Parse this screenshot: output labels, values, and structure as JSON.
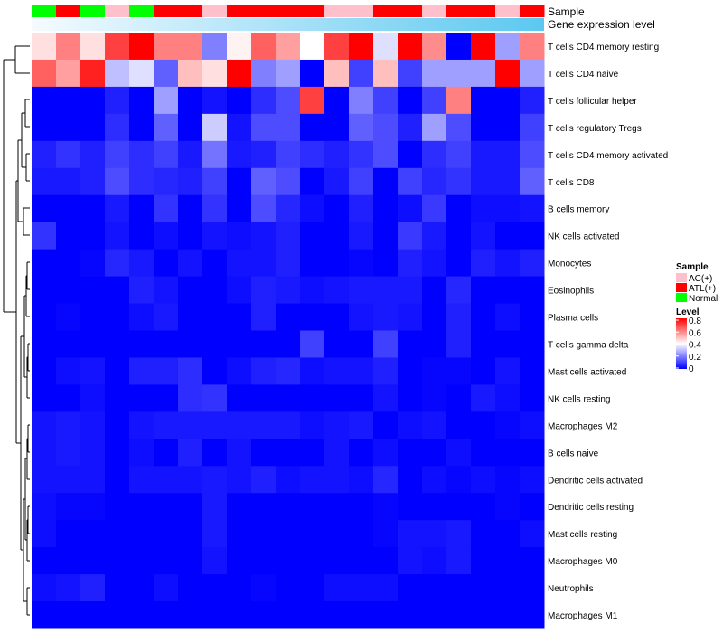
{
  "chart_data": {
    "type": "heatmap",
    "annotation_rows": [
      "Sample",
      "Gene expression level"
    ],
    "sample_groups": [
      "Normal",
      "ATL(+)",
      "Normal",
      "AC(+)",
      "Normal",
      "ATL(+)",
      "ATL(+)",
      "AC(+)",
      "ATL(+)",
      "ATL(+)",
      "ATL(+)",
      "ATL(+)",
      "AC(+)",
      "AC(+)",
      "ATL(+)",
      "ATL(+)",
      "AC(+)",
      "ATL(+)",
      "ATL(+)",
      "AC(+)",
      "ATL(+)"
    ],
    "rows": [
      "T cells CD4 memory resting",
      "T cells CD4 naive",
      "T cells follicular helper",
      "T cells regulatory  Tregs",
      "T cells CD4 memory activated",
      "T cells CD8",
      "B cells memory",
      "NK cells activated",
      "Monocytes",
      "Eosinophils",
      "Plasma cells",
      "T cells gamma delta",
      "Mast cells activated",
      "NK cells resting",
      "Macrophages M2",
      "B cells naive",
      "Dendritic cells activated",
      "Dendritic cells resting",
      "Mast cells resting",
      "Macrophages M0",
      "Neutrophils",
      "Macrophages M1"
    ],
    "values": [
      [
        0.45,
        0.6,
        0.45,
        0.7,
        0.8,
        0.6,
        0.6,
        0.2,
        0.42,
        0.65,
        0.55,
        0.4,
        0.7,
        0.82,
        0.35,
        0.82,
        0.58,
        0.0,
        0.8,
        0.25,
        0.6
      ],
      [
        0.65,
        0.55,
        0.75,
        0.3,
        0.35,
        0.15,
        0.5,
        0.45,
        0.8,
        0.2,
        0.25,
        0.0,
        0.5,
        0.1,
        0.5,
        0.1,
        0.25,
        0.25,
        0.25,
        0.8,
        0.25
      ],
      [
        0.0,
        0.0,
        0.0,
        0.05,
        0.0,
        0.25,
        0.0,
        0.03,
        0.0,
        0.07,
        0.12,
        0.7,
        0.0,
        0.2,
        0.1,
        0.0,
        0.1,
        0.6,
        0.0,
        0.0,
        0.05
      ],
      [
        0.0,
        0.0,
        0.0,
        0.07,
        0.0,
        0.15,
        0.0,
        0.32,
        0.03,
        0.12,
        0.12,
        0.0,
        0.0,
        0.15,
        0.12,
        0.05,
        0.25,
        0.12,
        0.0,
        0.0,
        0.1
      ],
      [
        0.05,
        0.08,
        0.05,
        0.1,
        0.07,
        0.1,
        0.04,
        0.18,
        0.04,
        0.05,
        0.1,
        0.07,
        0.05,
        0.08,
        0.12,
        0.0,
        0.07,
        0.1,
        0.04,
        0.04,
        0.12
      ],
      [
        0.04,
        0.04,
        0.05,
        0.12,
        0.07,
        0.06,
        0.05,
        0.1,
        0.0,
        0.15,
        0.12,
        0.0,
        0.04,
        0.1,
        0.0,
        0.1,
        0.06,
        0.08,
        0.04,
        0.04,
        0.15
      ],
      [
        0.0,
        0.0,
        0.0,
        0.04,
        0.0,
        0.08,
        0.0,
        0.08,
        0.0,
        0.12,
        0.06,
        0.02,
        0.0,
        0.05,
        0.0,
        0.02,
        0.09,
        0.0,
        0.02,
        0.02,
        0.03
      ],
      [
        0.08,
        0.0,
        0.0,
        0.03,
        0.0,
        0.02,
        0.0,
        0.03,
        0.02,
        0.03,
        0.05,
        0.0,
        0.0,
        0.04,
        0.0,
        0.09,
        0.04,
        0.0,
        0.03,
        0.0,
        0.0
      ],
      [
        0.0,
        0.0,
        0.01,
        0.06,
        0.04,
        0.0,
        0.03,
        0.0,
        0.03,
        0.03,
        0.05,
        0.0,
        0.0,
        0.01,
        0.0,
        0.05,
        0.03,
        0.0,
        0.05,
        0.03,
        0.05
      ],
      [
        0.0,
        0.0,
        0.0,
        0.0,
        0.05,
        0.03,
        0.0,
        0.0,
        0.02,
        0.05,
        0.04,
        0.02,
        0.03,
        0.04,
        0.04,
        0.04,
        0.0,
        0.06,
        0.0,
        0.0,
        0.0
      ],
      [
        0.0,
        0.01,
        0.0,
        0.0,
        0.02,
        0.04,
        0.0,
        0.0,
        0.0,
        0.05,
        0.0,
        0.0,
        0.0,
        0.03,
        0.04,
        0.03,
        0.0,
        0.05,
        0.0,
        0.02,
        0.0
      ],
      [
        0.0,
        0.0,
        0.0,
        0.0,
        0.0,
        0.0,
        0.0,
        0.0,
        0.0,
        0.0,
        0.0,
        0.1,
        0.0,
        0.0,
        0.1,
        0.0,
        0.0,
        0.05,
        0.0,
        0.0,
        0.0
      ],
      [
        0.0,
        0.02,
        0.03,
        0.0,
        0.05,
        0.05,
        0.07,
        0.0,
        0.02,
        0.05,
        0.06,
        0.02,
        0.03,
        0.03,
        0.05,
        0.0,
        0.01,
        0.01,
        0.0,
        0.03,
        0.0
      ],
      [
        0.0,
        0.0,
        0.02,
        0.0,
        0.0,
        0.0,
        0.07,
        0.08,
        0.0,
        0.0,
        0.0,
        0.0,
        0.0,
        0.0,
        0.03,
        0.0,
        0.01,
        0.0,
        0.04,
        0.02,
        0.0
      ],
      [
        0.03,
        0.04,
        0.03,
        0.0,
        0.03,
        0.04,
        0.04,
        0.04,
        0.04,
        0.04,
        0.04,
        0.02,
        0.03,
        0.04,
        0.0,
        0.02,
        0.03,
        0.0,
        0.0,
        0.01,
        0.02
      ],
      [
        0.03,
        0.04,
        0.03,
        0.0,
        0.02,
        0.0,
        0.05,
        0.0,
        0.03,
        0.0,
        0.0,
        0.0,
        0.03,
        0.0,
        0.02,
        0.0,
        0.0,
        0.02,
        0.0,
        0.0,
        0.0
      ],
      [
        0.03,
        0.03,
        0.03,
        0.0,
        0.03,
        0.03,
        0.03,
        0.04,
        0.03,
        0.05,
        0.02,
        0.03,
        0.03,
        0.02,
        0.06,
        0.0,
        0.02,
        0.01,
        0.02,
        0.01,
        0.02
      ],
      [
        0.02,
        0.01,
        0.01,
        0.0,
        0.0,
        0.0,
        0.0,
        0.04,
        0.0,
        0.0,
        0.0,
        0.0,
        0.0,
        0.0,
        0.01,
        0.0,
        0.0,
        0.0,
        0.0,
        0.01,
        0.0
      ],
      [
        0.02,
        0.0,
        0.0,
        0.0,
        0.0,
        0.0,
        0.0,
        0.04,
        0.0,
        0.0,
        0.0,
        0.0,
        0.0,
        0.0,
        0.01,
        0.03,
        0.03,
        0.04,
        0.0,
        0.0,
        0.02
      ],
      [
        0.0,
        0.0,
        0.0,
        0.0,
        0.0,
        0.0,
        0.0,
        0.03,
        0.0,
        0.0,
        0.0,
        0.0,
        0.0,
        0.0,
        0.0,
        0.03,
        0.02,
        0.04,
        0.0,
        0.0,
        0.0
      ],
      [
        0.02,
        0.03,
        0.05,
        0.0,
        0.0,
        0.02,
        0.0,
        0.0,
        0.0,
        0.01,
        0.0,
        0.0,
        0.02,
        0.02,
        0.02,
        0.0,
        0.0,
        0.0,
        0.0,
        0.0,
        0.0
      ],
      [
        0.0,
        0.0,
        0.0,
        0.0,
        0.0,
        0.0,
        0.0,
        0.0,
        0.0,
        0.0,
        0.0,
        0.0,
        0.0,
        0.0,
        0.0,
        0.0,
        0.0,
        0.0,
        0.0,
        0.0,
        0.0
      ]
    ],
    "legend_sample": {
      "title": "Sample",
      "entries": [
        {
          "label": "AC(+)",
          "color": "#ffc0cb"
        },
        {
          "label": "ATL(+)",
          "color": "#ff0000"
        },
        {
          "label": "Normal",
          "color": "#00ff00"
        }
      ]
    },
    "legend_level": {
      "title": "Level",
      "ticks": [
        "0.8",
        "0.6",
        "0.4",
        "0.2",
        "0"
      ],
      "range": [
        0,
        0.8
      ]
    },
    "color_scale": {
      "low": "#0000ff",
      "mid": "#ffffff",
      "high": "#ff0000",
      "midpoint": 0.4
    },
    "expression_gradient": {
      "start": "#f5fbff",
      "end": "#5cc8f0"
    }
  }
}
